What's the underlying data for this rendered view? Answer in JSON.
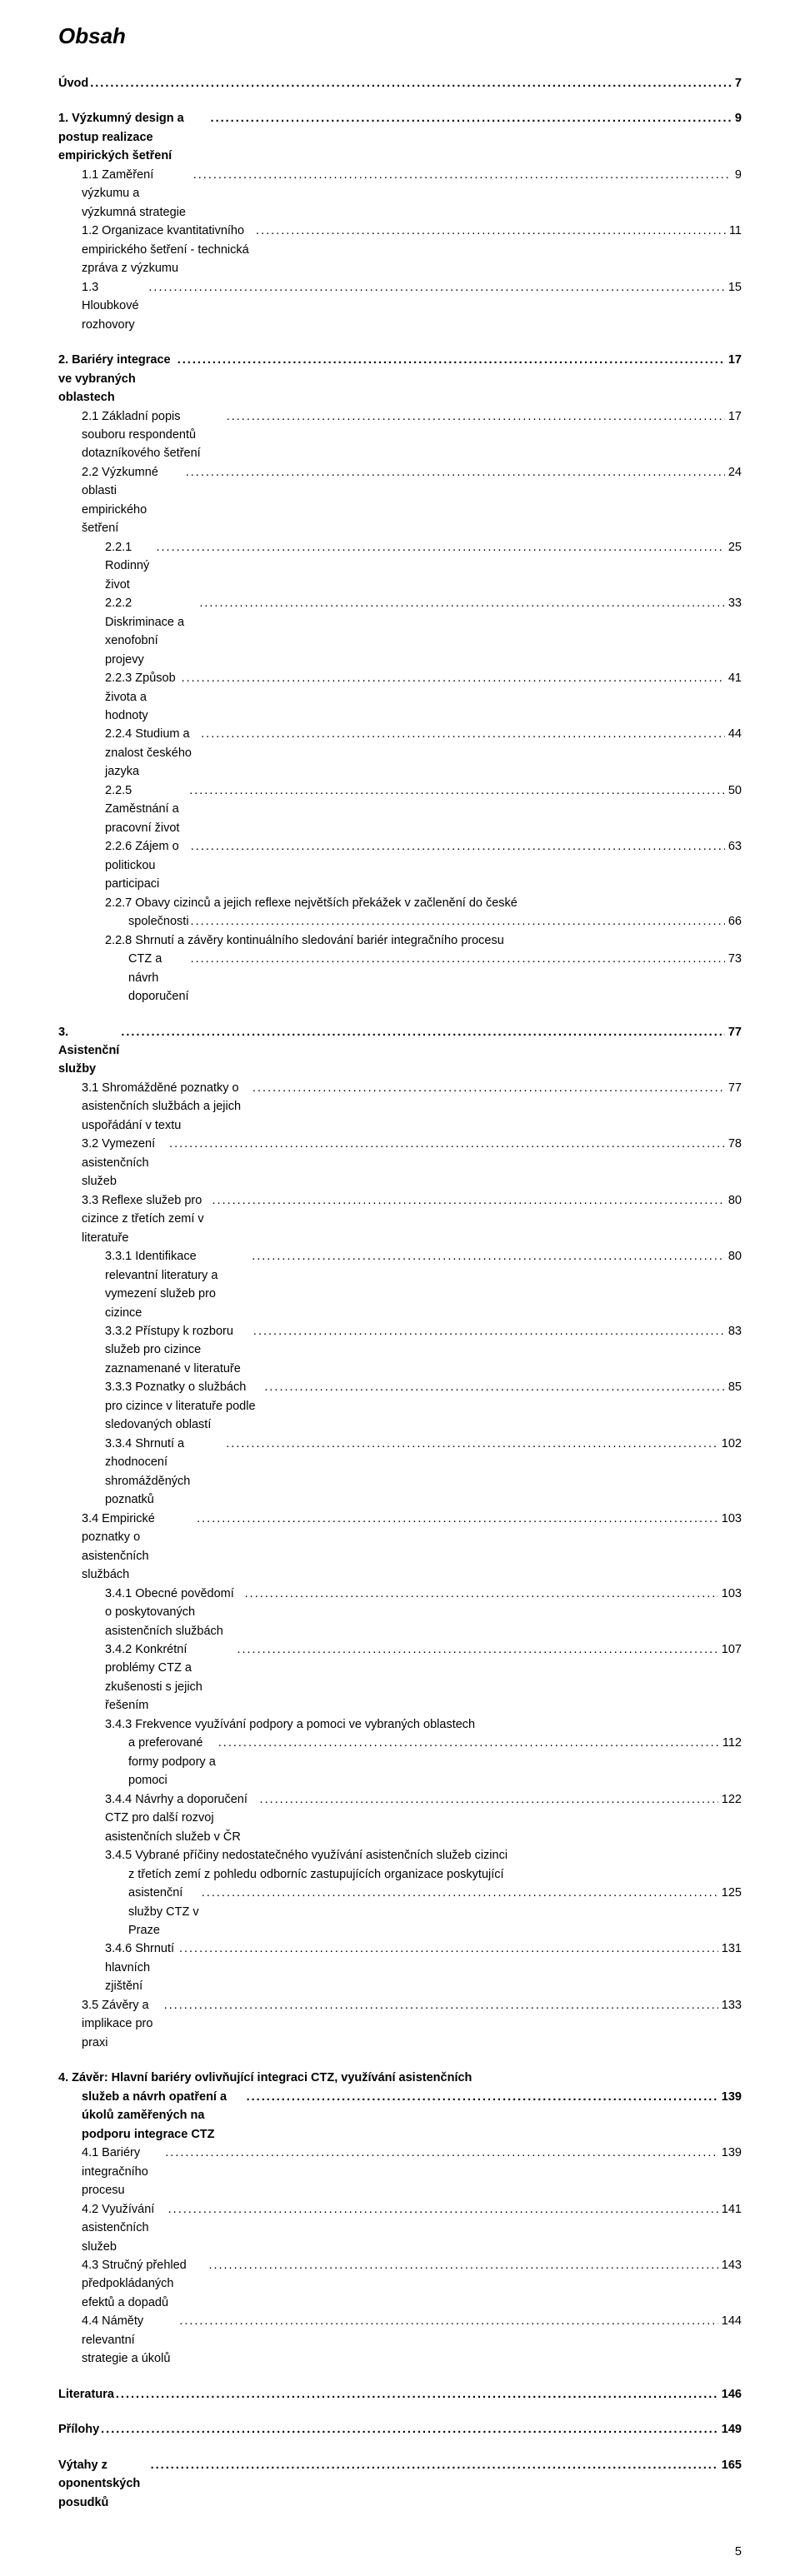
{
  "title": "Obsah",
  "page_number": "5",
  "sections": [
    {
      "entries": [
        {
          "label": "Úvod",
          "page": "7",
          "bold": true,
          "indent": 0
        }
      ]
    },
    {
      "entries": [
        {
          "label": "1. Výzkumný design a postup realizace empirických šetření",
          "page": "9",
          "bold": true,
          "indent": 0
        },
        {
          "label": "1.1 Zaměření výzkumu a výzkumná strategie",
          "page": "9",
          "bold": false,
          "indent": 1
        },
        {
          "label": "1.2 Organizace kvantitativního empirického šetření - technická zpráva z výzkumu",
          "page": "11",
          "bold": false,
          "indent": 1
        },
        {
          "label": "1.3 Hloubkové rozhovory",
          "page": "15",
          "bold": false,
          "indent": 1
        }
      ]
    },
    {
      "entries": [
        {
          "label": "2. Bariéry integrace ve vybraných oblastech",
          "page": "17",
          "bold": true,
          "indent": 0
        },
        {
          "label": "2.1 Základní popis souboru respondentů dotazníkového šetření",
          "page": "17",
          "bold": false,
          "indent": 1
        },
        {
          "label": "2.2 Výzkumné oblasti empirického šetření",
          "page": "24",
          "bold": false,
          "indent": 1
        },
        {
          "label": "2.2.1 Rodinný život",
          "page": "25",
          "bold": false,
          "indent": 2
        },
        {
          "label": "2.2.2 Diskriminace a xenofobní projevy",
          "page": "33",
          "bold": false,
          "indent": 2
        },
        {
          "label": "2.2.3 Způsob života a hodnoty",
          "page": "41",
          "bold": false,
          "indent": 2
        },
        {
          "label": "2.2.4 Studium a znalost českého jazyka",
          "page": "44",
          "bold": false,
          "indent": 2
        },
        {
          "label": "2.2.5 Zaměstnání a pracovní život",
          "page": "50",
          "bold": false,
          "indent": 2
        },
        {
          "label": "2.2.6 Zájem o politickou participaci",
          "page": "63",
          "bold": false,
          "indent": 2
        },
        {
          "wrap": true,
          "label": "2.2.7 Obavy cizinců a jejich reflexe největších překážek v začlenění do české",
          "bold": false,
          "indent": 2
        },
        {
          "label": "společnosti",
          "page": "66",
          "bold": false,
          "indent": 3
        },
        {
          "wrap": true,
          "label": "2.2.8 Shrnutí a závěry kontinuálního sledování bariér integračního procesu",
          "bold": false,
          "indent": 2
        },
        {
          "label": "CTZ a návrh doporučení",
          "page": "73",
          "bold": false,
          "indent": 3
        }
      ]
    },
    {
      "entries": [
        {
          "label": "3. Asistenční služby",
          "page": "77",
          "bold": true,
          "indent": 0
        },
        {
          "label": "3.1 Shromážděné poznatky o asistenčních službách a jejich uspořádání v textu",
          "page": "77",
          "bold": false,
          "indent": 1
        },
        {
          "label": "3.2 Vymezení asistenčních služeb",
          "page": "78",
          "bold": false,
          "indent": 1
        },
        {
          "label": "3.3 Reflexe služeb pro cizince z třetích zemí v literatuře",
          "page": "80",
          "bold": false,
          "indent": 1
        },
        {
          "label": "3.3.1 Identifikace relevantní literatury a vymezení služeb pro cizince",
          "page": "80",
          "bold": false,
          "indent": 2
        },
        {
          "label": "3.3.2 Přístupy k rozboru služeb pro cizince zaznamenané v literatuře",
          "page": "83",
          "bold": false,
          "indent": 2
        },
        {
          "label": "3.3.3 Poznatky o službách pro cizince v literatuře podle sledovaných oblastí",
          "page": "85",
          "bold": false,
          "indent": 2
        },
        {
          "label": "3.3.4 Shrnutí a zhodnocení shromážděných poznatků",
          "page": "102",
          "bold": false,
          "indent": 2
        },
        {
          "label": "3.4 Empirické poznatky o asistenčních službách",
          "page": "103",
          "bold": false,
          "indent": 1
        },
        {
          "label": "3.4.1 Obecné povědomí o poskytovaných asistenčních službách",
          "page": "103",
          "bold": false,
          "indent": 2
        },
        {
          "label": "3.4.2 Konkrétní problémy CTZ a zkušenosti s jejich řešením",
          "page": "107",
          "bold": false,
          "indent": 2
        },
        {
          "wrap": true,
          "label": "3.4.3 Frekvence využívání podpory a pomoci ve vybraných oblastech",
          "bold": false,
          "indent": 2
        },
        {
          "label": "a preferované formy podpory a pomoci",
          "page": "112",
          "bold": false,
          "indent": 3
        },
        {
          "label": "3.4.4 Návrhy a doporučení CTZ pro další rozvoj asistenčních služeb v ČR",
          "page": "122",
          "bold": false,
          "indent": 2
        },
        {
          "wrap": true,
          "label": "3.4.5 Vybrané příčiny nedostatečného využívání asistenčních služeb cizinci",
          "bold": false,
          "indent": 2
        },
        {
          "wrap": true,
          "label": "z třetích zemí z pohledu odborníc zastupujících organizace poskytující",
          "bold": false,
          "indent": 3
        },
        {
          "label": "asistenční služby CTZ v Praze",
          "page": "125",
          "bold": false,
          "indent": 3
        },
        {
          "label": "3.4.6 Shrnutí hlavních zjištění",
          "page": "131",
          "bold": false,
          "indent": 2
        },
        {
          "label": "3.5 Závěry a implikace pro praxi",
          "page": "133",
          "bold": false,
          "indent": 1
        }
      ]
    },
    {
      "entries": [
        {
          "wrap": true,
          "label": "4. Závěr: Hlavní bariéry ovlivňující integraci CTZ, využívání asistenčních",
          "bold": true,
          "indent": 0
        },
        {
          "label": "služeb a návrh opatření a úkolů zaměřených na podporu integrace CTZ",
          "page": "139",
          "bold": true,
          "indent": 1
        },
        {
          "label": "4.1 Bariéry integračního procesu",
          "page": "139",
          "bold": false,
          "indent": 1
        },
        {
          "label": "4.2 Využívání asistenčních služeb",
          "page": "141",
          "bold": false,
          "indent": 1
        },
        {
          "label": "4.3 Stručný přehled předpokládaných efektů a dopadů",
          "page": "143",
          "bold": false,
          "indent": 1
        },
        {
          "label": "4.4 Náměty relevantní strategie a úkolů",
          "page": "144",
          "bold": false,
          "indent": 1
        }
      ]
    },
    {
      "entries": [
        {
          "label": "Literatura",
          "page": "146",
          "bold": true,
          "indent": 0
        }
      ]
    },
    {
      "entries": [
        {
          "label": "Přílohy",
          "page": "149",
          "bold": true,
          "indent": 0
        }
      ]
    },
    {
      "entries": [
        {
          "label": "Výtahy z oponentských posudků",
          "page": "165",
          "bold": true,
          "indent": 0
        }
      ]
    }
  ]
}
